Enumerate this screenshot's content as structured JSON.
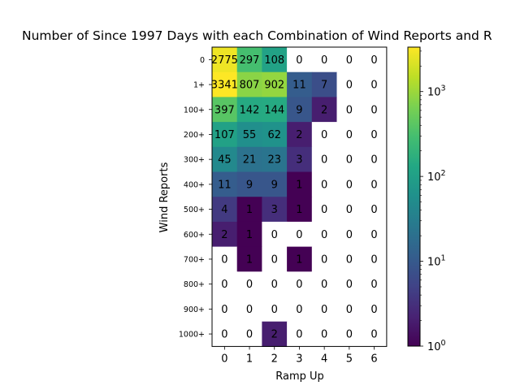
{
  "chart_data": {
    "type": "heatmap",
    "title": "Number of Since 1997 Days with each Combination of Wind Reports and R",
    "xlabel": "Ramp Up",
    "ylabel": "Wind Reports",
    "x_categories": [
      "0",
      "1",
      "2",
      "3",
      "4",
      "5",
      "6"
    ],
    "y_categories": [
      "0",
      "1+",
      "100+",
      "200+",
      "300+",
      "400+",
      "500+",
      "600+",
      "700+",
      "800+",
      "900+",
      "1000+"
    ],
    "values": [
      [
        2775,
        297,
        108,
        0,
        0,
        0,
        0
      ],
      [
        3341,
        807,
        902,
        11,
        7,
        0,
        0
      ],
      [
        397,
        142,
        144,
        9,
        2,
        0,
        0
      ],
      [
        107,
        55,
        62,
        2,
        0,
        0,
        0
      ],
      [
        45,
        21,
        23,
        3,
        0,
        0,
        0
      ],
      [
        11,
        9,
        9,
        1,
        0,
        0,
        0
      ],
      [
        4,
        1,
        3,
        1,
        0,
        0,
        0
      ],
      [
        2,
        1,
        0,
        0,
        0,
        0,
        0
      ],
      [
        0,
        1,
        0,
        1,
        0,
        0,
        0
      ],
      [
        0,
        0,
        0,
        0,
        0,
        0,
        0
      ],
      [
        0,
        0,
        0,
        0,
        0,
        0,
        0
      ],
      [
        0,
        0,
        2,
        0,
        0,
        0,
        0
      ]
    ],
    "color_scale": "log",
    "colormap": "viridis",
    "colorbar_range": [
      1,
      3341
    ],
    "colorbar_ticks": [
      {
        "value": 1,
        "base": "10",
        "exp": "0"
      },
      {
        "value": 10,
        "base": "10",
        "exp": "1"
      },
      {
        "value": 100,
        "base": "10",
        "exp": "2"
      },
      {
        "value": 1000,
        "base": "10",
        "exp": "3"
      }
    ],
    "zero_color": "#ffffff"
  }
}
